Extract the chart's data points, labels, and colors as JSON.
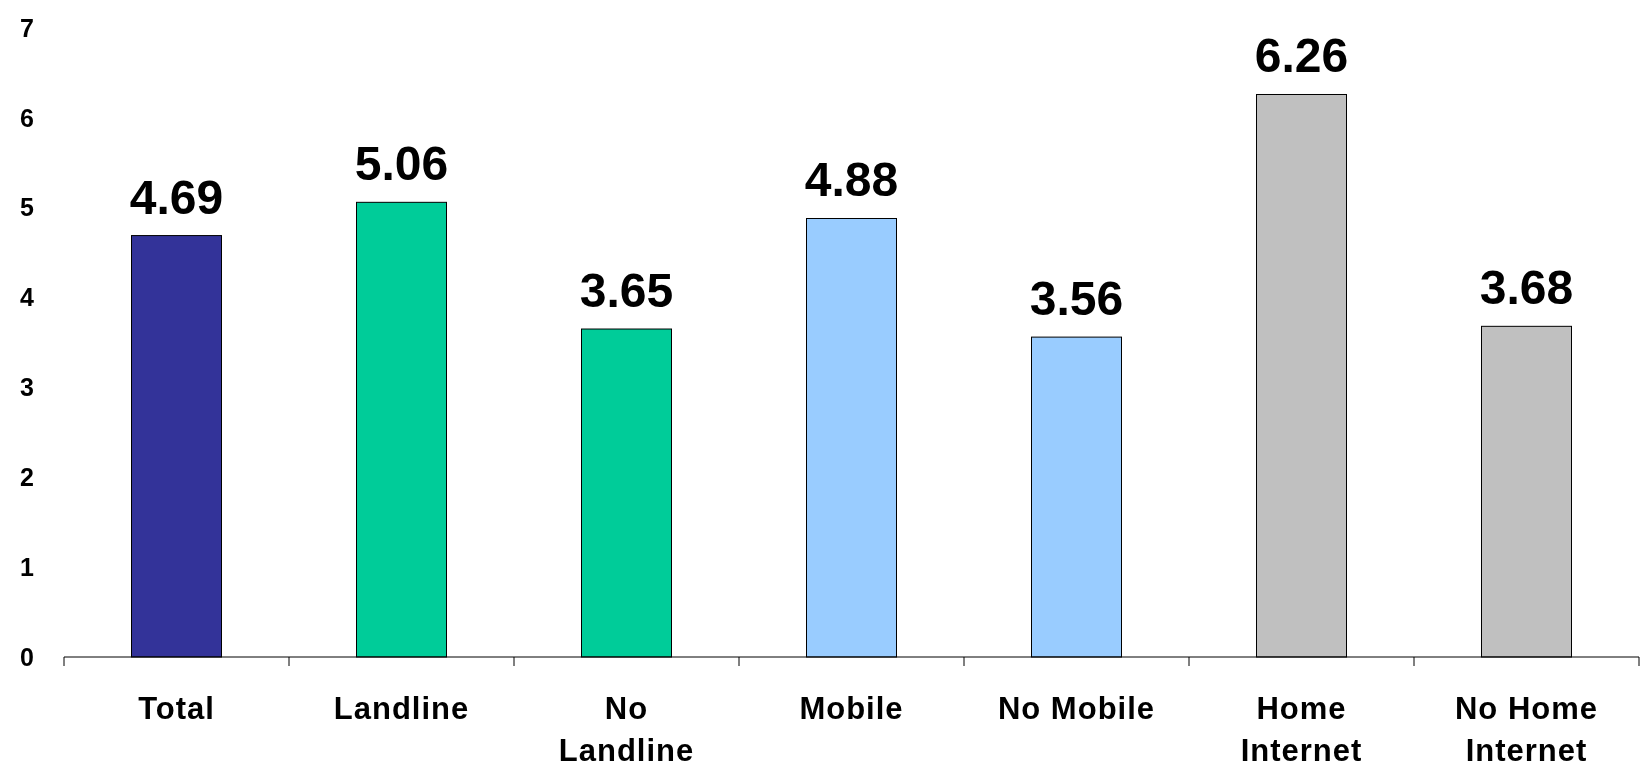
{
  "chart_data": {
    "type": "bar",
    "categories": [
      "Total",
      "Landline",
      "No\nLandline",
      "Mobile",
      "No Mobile",
      "Home\nInternet",
      "No Home\nInternet"
    ],
    "values": [
      4.69,
      5.06,
      3.65,
      4.88,
      3.56,
      6.26,
      3.68
    ],
    "colors": [
      "#333399",
      "#00cc99",
      "#00cc99",
      "#99ccff",
      "#99ccff",
      "#c0c0c0",
      "#c0c0c0"
    ],
    "ylim": [
      0,
      7
    ],
    "yticks": [
      0,
      1,
      2,
      3,
      4,
      5,
      6,
      7
    ],
    "data_labels": true
  }
}
